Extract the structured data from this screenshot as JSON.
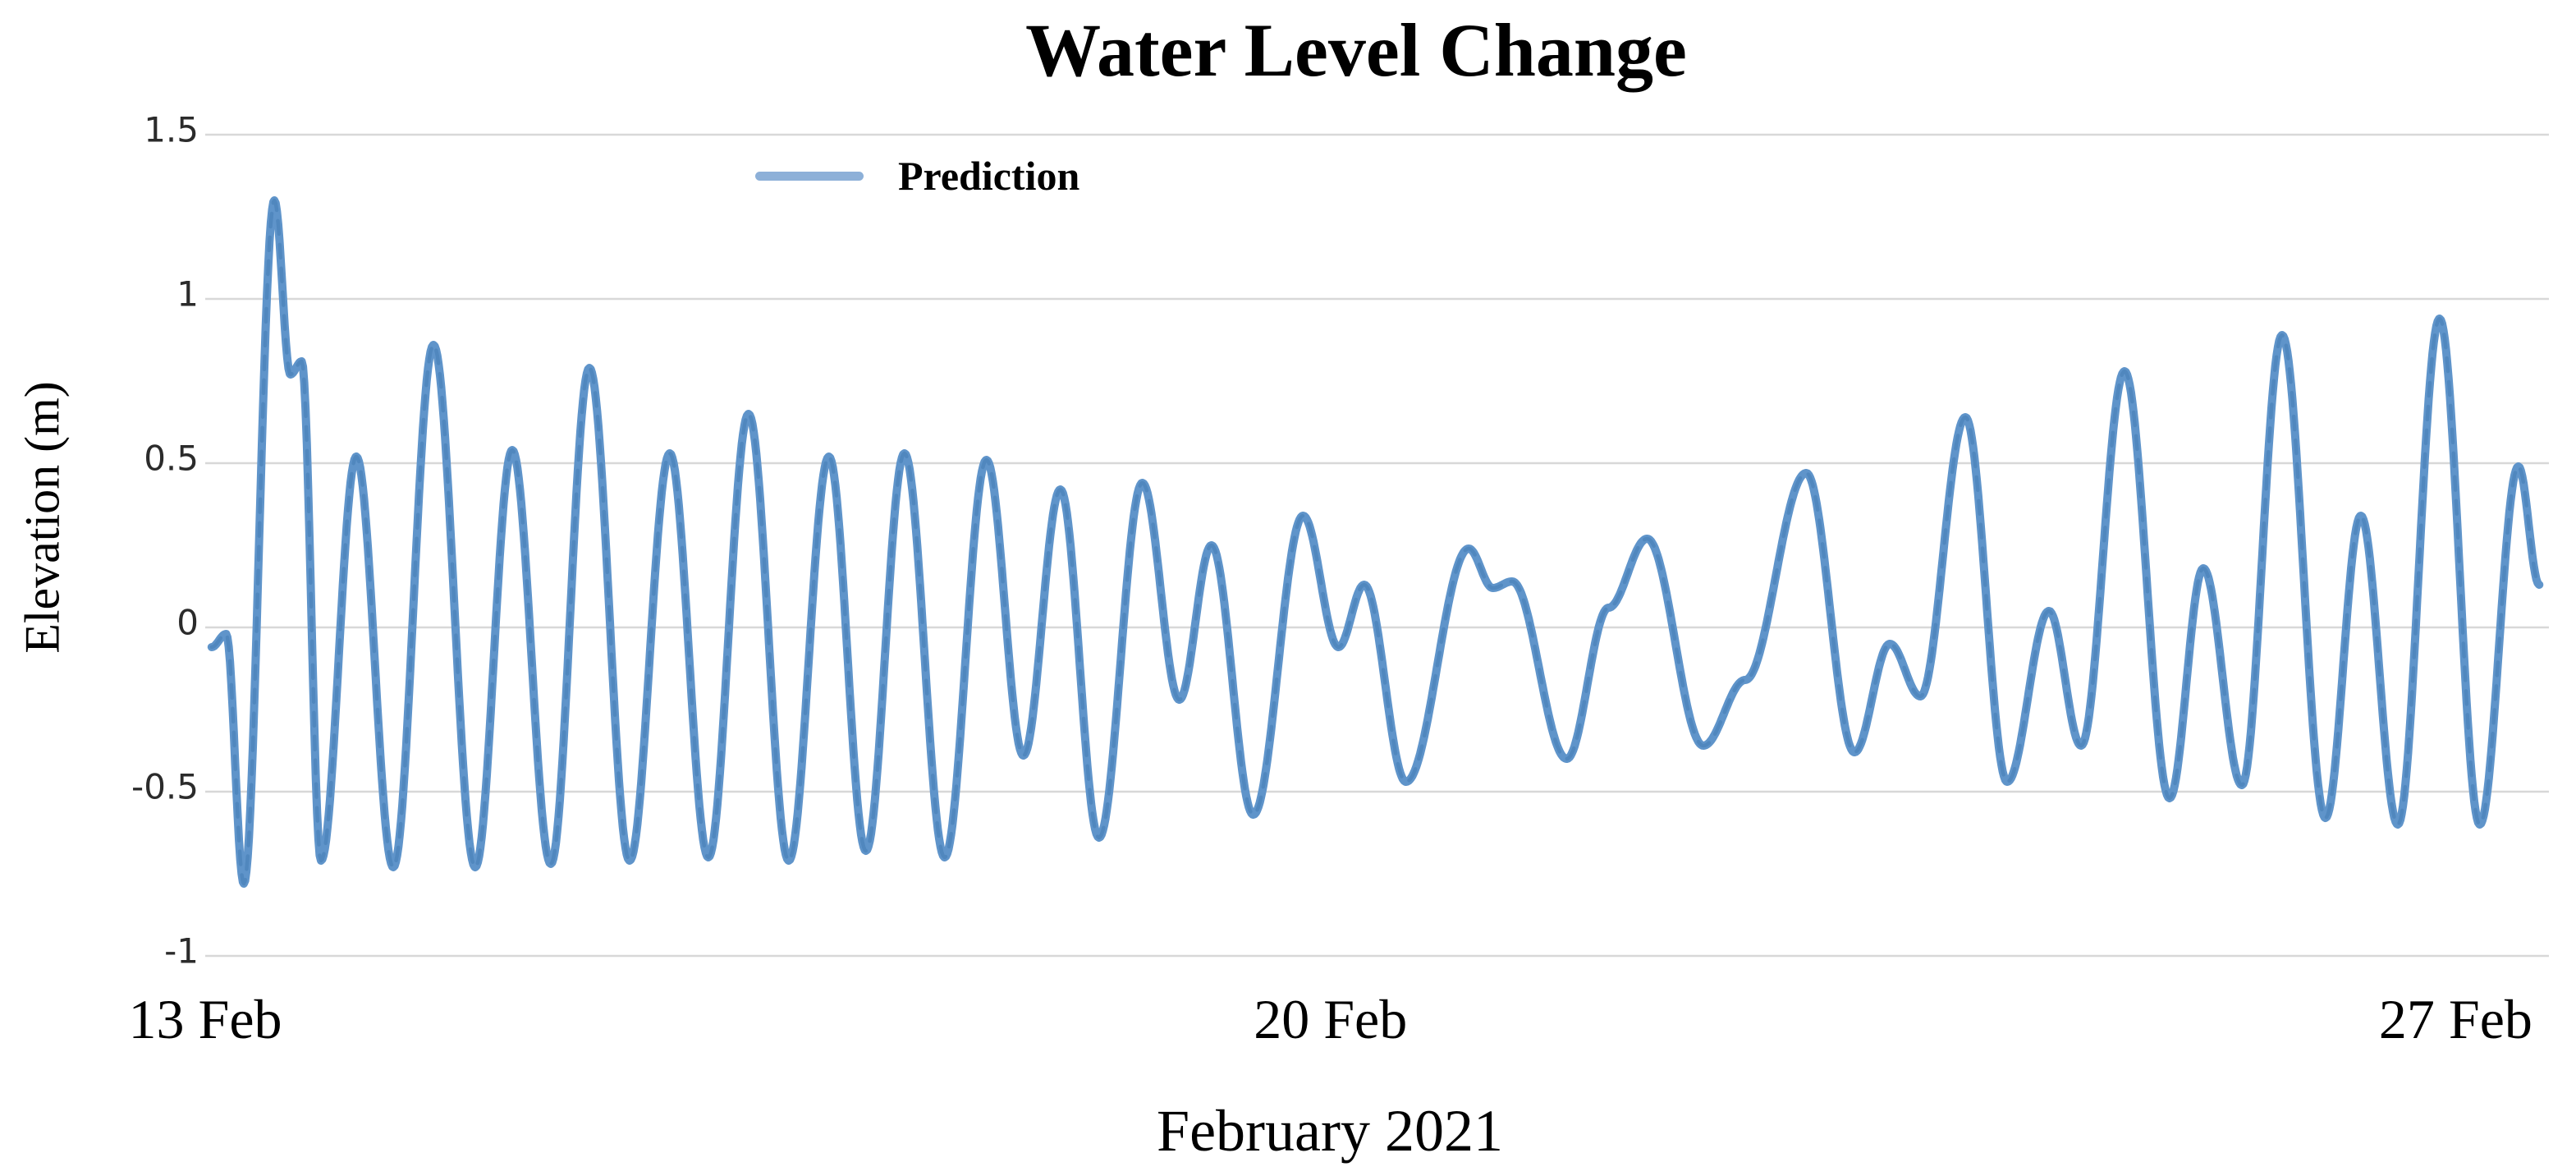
{
  "chart_data": {
    "type": "line",
    "title": "Water Level Change",
    "xlabel": "February 2021",
    "ylabel": "Elevation (m)",
    "legend_label": "Prediction",
    "legend_position": "top-left-of-center, inside plot",
    "grid": "horizontal",
    "ylim": [
      -1,
      1.5
    ],
    "xlim_days": [
      0,
      14.58
    ],
    "x_unit": "days since 13 Feb 2021",
    "y_ticks": [
      {
        "value": 1.5,
        "label": "1.5"
      },
      {
        "value": 1,
        "label": "1"
      },
      {
        "value": 0.5,
        "label": "0.5"
      },
      {
        "value": 0,
        "label": "0"
      },
      {
        "value": -0.5,
        "label": "-0.5"
      },
      {
        "value": -1,
        "label": "-1"
      }
    ],
    "x_ticks": [
      {
        "day": 0,
        "label": "13 Feb"
      },
      {
        "day": 7,
        "label": "20 Feb"
      },
      {
        "day": 14,
        "label": "27 Feb"
      }
    ],
    "interpolation": "cosine-smooth between extrema",
    "series": [
      {
        "name": "Prediction",
        "points_day_elevation_m": [
          [
            0.04,
            -0.06
          ],
          [
            0.13,
            -0.02
          ],
          [
            0.24,
            -0.78
          ],
          [
            0.43,
            1.3
          ],
          [
            0.53,
            0.77
          ],
          [
            0.6,
            0.81
          ],
          [
            0.72,
            -0.71
          ],
          [
            0.94,
            0.52
          ],
          [
            1.17,
            -0.73
          ],
          [
            1.42,
            0.86
          ],
          [
            1.68,
            -0.73
          ],
          [
            1.91,
            0.54
          ],
          [
            2.15,
            -0.72
          ],
          [
            2.39,
            0.79
          ],
          [
            2.64,
            -0.71
          ],
          [
            2.89,
            0.53
          ],
          [
            3.13,
            -0.7
          ],
          [
            3.38,
            0.65
          ],
          [
            3.63,
            -0.71
          ],
          [
            3.88,
            0.52
          ],
          [
            4.11,
            -0.68
          ],
          [
            4.35,
            0.53
          ],
          [
            4.6,
            -0.7
          ],
          [
            4.86,
            0.51
          ],
          [
            5.09,
            -0.39
          ],
          [
            5.32,
            0.42
          ],
          [
            5.56,
            -0.64
          ],
          [
            5.83,
            0.44
          ],
          [
            6.06,
            -0.22
          ],
          [
            6.26,
            0.25
          ],
          [
            6.52,
            -0.57
          ],
          [
            6.83,
            0.34
          ],
          [
            7.05,
            -0.06
          ],
          [
            7.21,
            0.13
          ],
          [
            7.47,
            -0.47
          ],
          [
            7.86,
            0.24
          ],
          [
            8.01,
            0.12
          ],
          [
            8.13,
            0.14
          ],
          [
            8.47,
            -0.4
          ],
          [
            8.73,
            0.06
          ],
          [
            8.97,
            0.27
          ],
          [
            9.32,
            -0.36
          ],
          [
            9.58,
            -0.16
          ],
          [
            9.96,
            0.47
          ],
          [
            10.26,
            -0.38
          ],
          [
            10.48,
            -0.05
          ],
          [
            10.67,
            -0.21
          ],
          [
            10.95,
            0.64
          ],
          [
            11.21,
            -0.47
          ],
          [
            11.47,
            0.05
          ],
          [
            11.67,
            -0.36
          ],
          [
            11.94,
            0.78
          ],
          [
            12.22,
            -0.52
          ],
          [
            12.43,
            0.18
          ],
          [
            12.67,
            -0.48
          ],
          [
            12.92,
            0.89
          ],
          [
            13.19,
            -0.58
          ],
          [
            13.41,
            0.34
          ],
          [
            13.64,
            -0.6
          ],
          [
            13.9,
            0.94
          ],
          [
            14.15,
            -0.6
          ],
          [
            14.39,
            0.49
          ],
          [
            14.52,
            0.13
          ]
        ]
      }
    ],
    "colors": {
      "line": "#5f94ca",
      "line_core": "#3f78b0",
      "legend_swatch": "#8db0d8",
      "grid": "#d8d8d8",
      "text": "#000000",
      "tick_text": "#2b2b2b",
      "background": "#ffffff"
    }
  }
}
